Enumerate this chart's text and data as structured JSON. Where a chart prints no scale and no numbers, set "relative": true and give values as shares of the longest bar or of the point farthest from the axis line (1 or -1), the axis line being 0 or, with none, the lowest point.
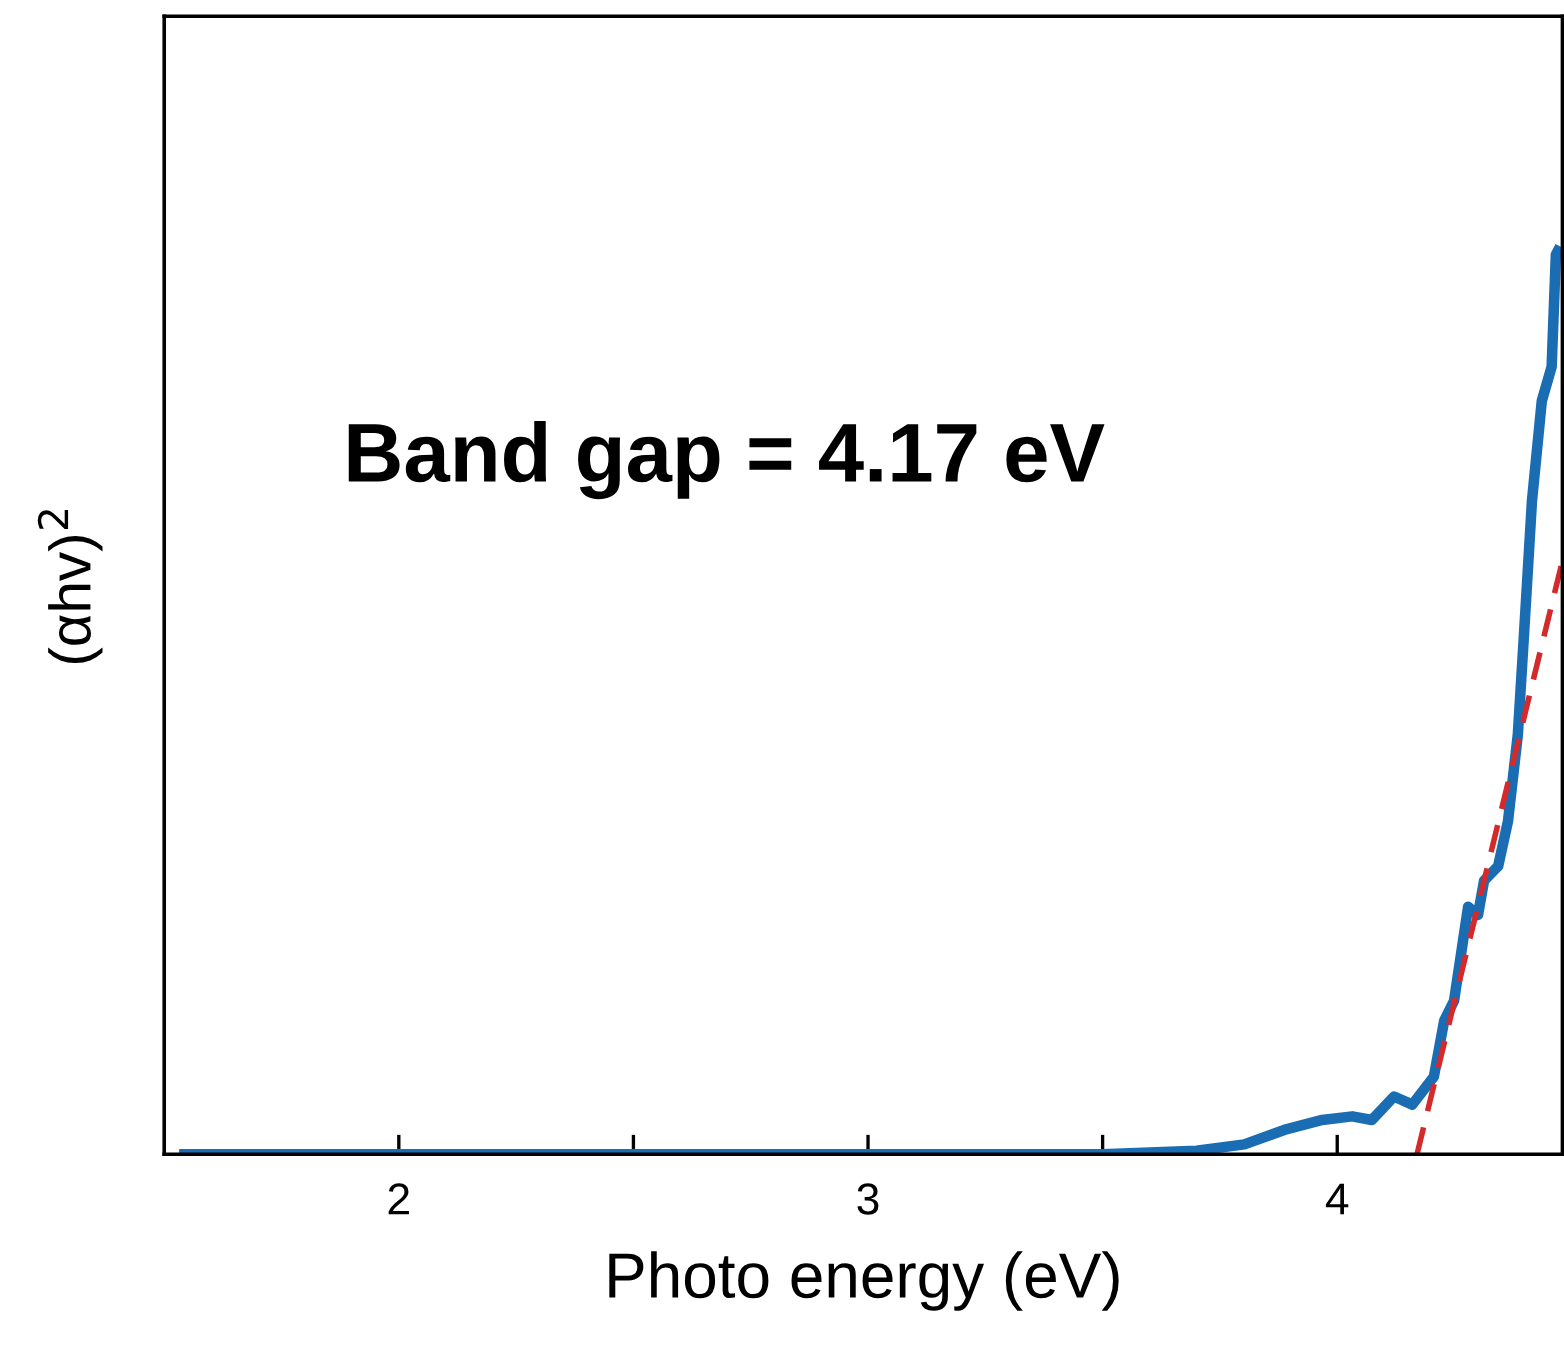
{
  "chart_data": {
    "type": "line",
    "relative": true,
    "xlabel": "Photo energy (eV)",
    "ylabel": "(αhv)$^{2}$",
    "annotations": [
      "Band gap = 4.17 eV"
    ],
    "xlim": [
      1.5,
      4.48
    ],
    "xticks": [
      2,
      {
        "value": 2.5,
        "label": null
      },
      3,
      {
        "value": 3.5,
        "label": null
      },
      4
    ],
    "grid": false,
    "legend": false,
    "series": [
      {
        "color": "#1a6db3",
        "line_style": "solid",
        "x": [
          1.543,
          2.0,
          2.5,
          3.0,
          3.5,
          3.7,
          3.802,
          3.887,
          3.968,
          4.032,
          4.074,
          4.121,
          4.16,
          4.206,
          4.228,
          4.249,
          4.279,
          4.3,
          4.313,
          4.343,
          4.364,
          4.385,
          4.398,
          4.415,
          4.436,
          4.457,
          4.466,
          4.47
        ],
        "values": [
          0,
          0,
          0,
          0,
          0,
          0.004,
          0.011,
          0.027,
          0.038,
          0.042,
          0.038,
          0.064,
          0.055,
          0.086,
          0.148,
          0.17,
          0.274,
          0.265,
          0.303,
          0.319,
          0.369,
          0.465,
          0.575,
          0.723,
          0.834,
          0.872,
          0.996,
          1.0
        ]
      },
      {
        "color": "#d42a2a",
        "line_style": "dashed",
        "x": [
          4.17,
          4.48
        ],
        "values": [
          0,
          0.657
        ]
      }
    ]
  }
}
